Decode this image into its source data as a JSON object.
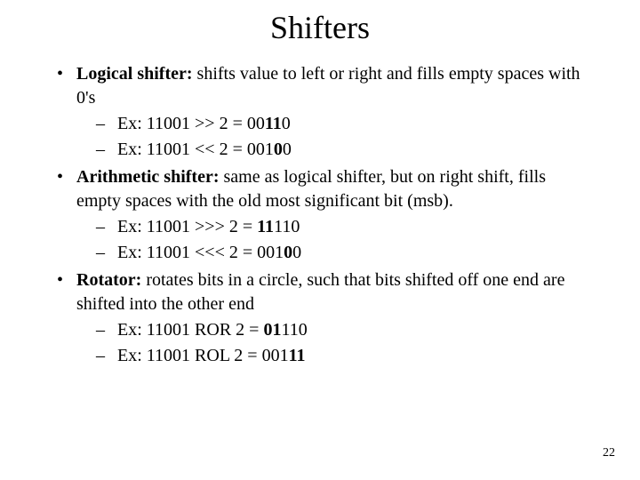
{
  "title": "Shifters",
  "page_number": "22",
  "colors": {
    "background": "#ffffff",
    "text": "#000000"
  },
  "typography": {
    "title_fontsize_pt": 28,
    "body_fontsize_pt": 16,
    "family": "Times New Roman"
  },
  "bullets": [
    {
      "term": "Logical shifter:",
      "desc": " shifts value to left or right and fills empty spaces with 0's",
      "examples": [
        {
          "prefix": "Ex: 11001 >> 2 = 00",
          "bold": "11",
          "suffix": "0"
        },
        {
          "prefix": "Ex: 11001 << 2 = 001",
          "bold": "0",
          "suffix": "0"
        }
      ]
    },
    {
      "term": "Arithmetic shifter:",
      "desc": " same as logical shifter, but on right shift, fills empty spaces with the old most significant bit (msb).",
      "examples": [
        {
          "prefix": "Ex: 11001 >>> 2 = ",
          "bold": "11",
          "suffix": "110"
        },
        {
          "prefix": "Ex: 11001 <<< 2 = 001",
          "bold": "0",
          "suffix": "0"
        }
      ]
    },
    {
      "term": "Rotator:",
      "desc": " rotates bits in a circle, such that bits shifted off one end are shifted into the other end",
      "examples": [
        {
          "prefix": "Ex: 11001 ROR 2 = ",
          "bold": "01",
          "suffix": "110"
        },
        {
          "prefix": "Ex: 11001 ROL 2 = 001",
          "bold": "11",
          "suffix": ""
        }
      ]
    }
  ]
}
